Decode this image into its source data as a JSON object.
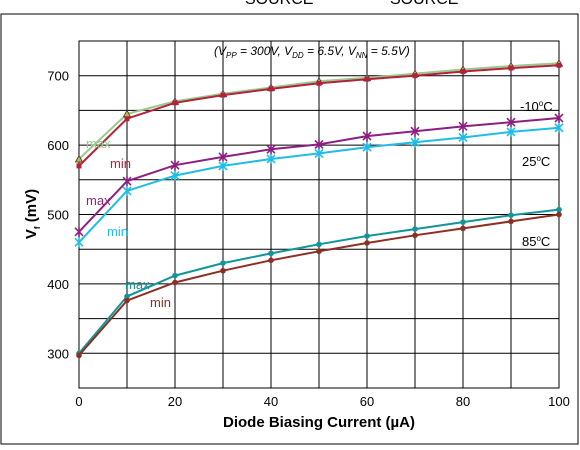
{
  "header_fragment": {
    "left": "SOURCE",
    "right": "SOURCE"
  },
  "conditions": {
    "open": "(V",
    "pp_sub": "PP",
    "pp_val": " = 300V, V",
    "dd_sub": "DD",
    "dd_val": " = 6.5V, V",
    "nn_sub": "NN",
    "nn_val": " = 5.5V)"
  },
  "temperature_labels": [
    {
      "prefix": "-10",
      "sup": "o",
      "suffix": "C"
    },
    {
      "prefix": "25",
      "sup": "o",
      "suffix": "C"
    },
    {
      "prefix": "85",
      "sup": "o",
      "suffix": "C"
    }
  ],
  "ylabel_parts": {
    "main": "V",
    "sub": "f",
    "rest": " (mV)"
  },
  "colors": {
    "minus10_max": "#9ac98e",
    "minus10_min": "#b5213a",
    "t25_max": "#8e1f82",
    "t25_min": "#1fbde6",
    "t85_max": "#11959a",
    "t85_min": "#8e2f24",
    "grid": "#000000"
  },
  "chart_data": {
    "type": "line",
    "title": "",
    "xlabel": "Diode Biasing Current (µA)",
    "ylabel": "Vf (mV)",
    "xlim": [
      0,
      100
    ],
    "ylim": [
      250,
      750
    ],
    "x_ticks": [
      0,
      20,
      40,
      60,
      80,
      100
    ],
    "y_ticks": [
      300,
      400,
      500,
      600,
      700
    ],
    "grid": true,
    "x": [
      0,
      10,
      20,
      30,
      40,
      50,
      60,
      70,
      80,
      90,
      100
    ],
    "series": [
      {
        "name": "max",
        "group": "-10°C",
        "color": "#9ac98e",
        "marker": "triangle",
        "values": [
          580,
          645,
          663,
          674,
          683,
          692,
          697,
          703,
          709,
          714,
          718
        ]
      },
      {
        "name": "min",
        "group": "-10°C",
        "color": "#b5213a",
        "marker": "square",
        "values": [
          570,
          638,
          661,
          672,
          681,
          689,
          695,
          700,
          706,
          711,
          715
        ]
      },
      {
        "name": "max",
        "group": "25°C",
        "color": "#8e1f82",
        "marker": "x",
        "values": [
          475,
          548,
          571,
          583,
          594,
          601,
          613,
          620,
          627,
          633,
          639
        ]
      },
      {
        "name": "min",
        "group": "25°C",
        "color": "#1fbde6",
        "marker": "x",
        "values": [
          460,
          534,
          556,
          570,
          580,
          588,
          597,
          604,
          611,
          619,
          625
        ]
      },
      {
        "name": "max",
        "group": "85°C",
        "color": "#11959a",
        "marker": "dot",
        "values": [
          300,
          382,
          412,
          430,
          444,
          457,
          469,
          479,
          489,
          499,
          507
        ]
      },
      {
        "name": "min",
        "group": "85°C",
        "color": "#8e2f24",
        "marker": "dot",
        "values": [
          297,
          376,
          402,
          419,
          434,
          447,
          459,
          470,
          480,
          490,
          500
        ]
      }
    ]
  }
}
